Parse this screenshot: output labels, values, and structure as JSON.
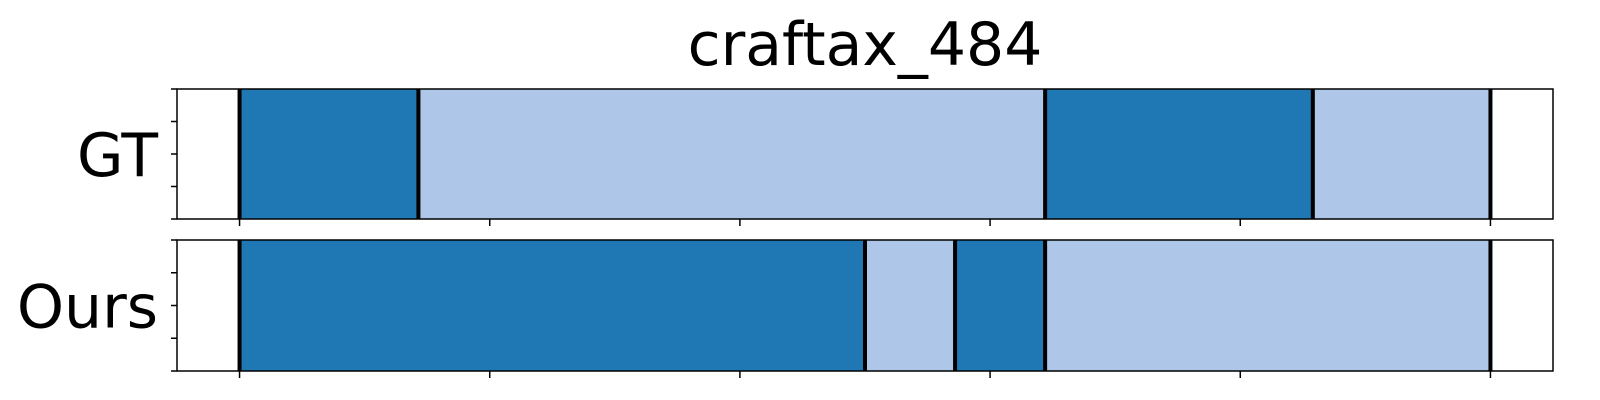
{
  "chart_data": {
    "type": "segmentation_timeline",
    "title": "craftax_484",
    "xlim": [
      0,
      100
    ],
    "x_ticks": [
      5,
      25,
      45,
      65,
      85,
      105
    ],
    "grid": false,
    "colors": {
      "dark": "#1f77b4",
      "light": "#aec7e8",
      "boundary": "#000000"
    },
    "rows": [
      {
        "label": "GT",
        "segments": [
          {
            "start": 5.0,
            "end": 19.3,
            "class": "dark"
          },
          {
            "start": 19.3,
            "end": 69.4,
            "class": "light"
          },
          {
            "start": 69.4,
            "end": 90.8,
            "class": "dark"
          },
          {
            "start": 90.8,
            "end": 105.0,
            "class": "light"
          }
        ],
        "boundaries": [
          5.0,
          19.3,
          69.4,
          90.8,
          105.0
        ]
      },
      {
        "label": "Ours",
        "segments": [
          {
            "start": 5.0,
            "end": 55.0,
            "class": "dark"
          },
          {
            "start": 55.0,
            "end": 62.2,
            "class": "light"
          },
          {
            "start": 62.2,
            "end": 69.4,
            "class": "dark"
          },
          {
            "start": 69.4,
            "end": 105.0,
            "class": "light"
          }
        ],
        "boundaries": [
          5.0,
          55.0,
          62.2,
          69.4,
          105.0
        ]
      }
    ]
  }
}
